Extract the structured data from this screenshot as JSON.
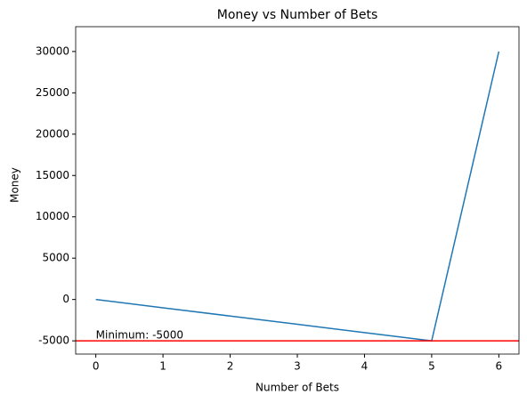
{
  "chart_data": {
    "type": "line",
    "title": "Money vs Number of Bets",
    "xlabel": "Number of Bets",
    "ylabel": "Money",
    "x": [
      0,
      1,
      2,
      3,
      4,
      5,
      6
    ],
    "values": [
      0,
      -1000,
      -2000,
      -3000,
      -4000,
      -5000,
      30000
    ],
    "color": "#1f77b4",
    "xlim": [
      -0.3,
      6.3
    ],
    "xticks": [
      0,
      1,
      2,
      3,
      4,
      5,
      6
    ],
    "ylim": [
      -6600,
      33000
    ],
    "yticks": [
      -5000,
      0,
      5000,
      10000,
      15000,
      20000,
      25000,
      30000
    ],
    "hline": {
      "value": -5000,
      "color": "red"
    },
    "annotation": "Minimum: -5000"
  }
}
